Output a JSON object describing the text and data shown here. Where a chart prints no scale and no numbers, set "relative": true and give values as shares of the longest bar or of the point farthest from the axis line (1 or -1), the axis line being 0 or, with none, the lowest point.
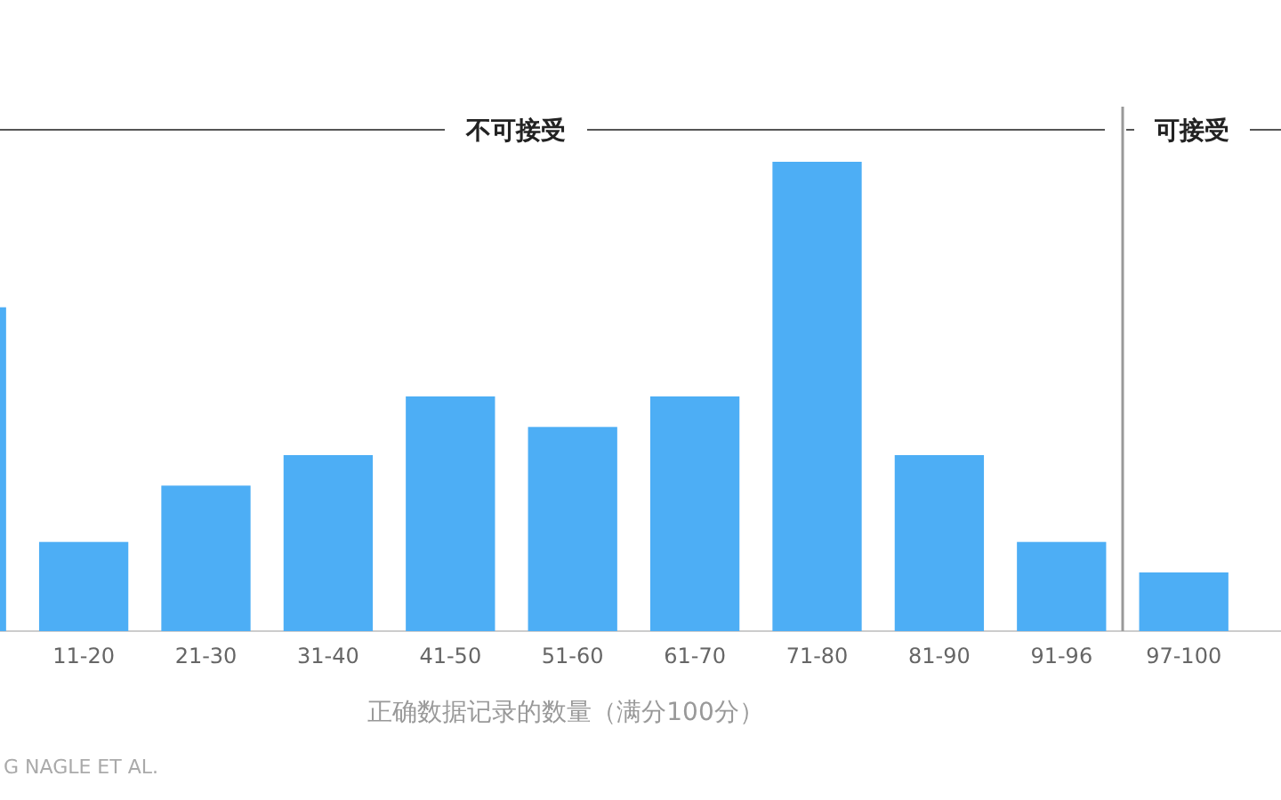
{
  "chart_data": {
    "type": "bar",
    "relative": true,
    "color": "#4daef5",
    "categories": [
      null,
      "11-20",
      "21-30",
      "31-40",
      "41-50",
      "51-60",
      "61-70",
      "71-80",
      "81-90",
      "91-96",
      "97-100"
    ],
    "values": [
      0.69,
      0.19,
      0.31,
      0.375,
      0.5,
      0.435,
      0.5,
      1,
      0.375,
      0.19,
      0.125
    ],
    "xlabel": "正确数据记录的数量（满分100分）",
    "annotations": [
      "不可接受",
      "可接受",
      "G NAGLE ET AL."
    ]
  }
}
